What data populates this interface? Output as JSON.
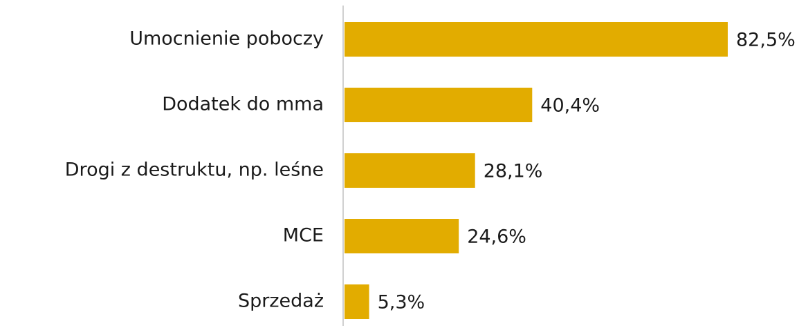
{
  "chart_data": {
    "type": "bar",
    "orientation": "horizontal",
    "categories": [
      "Umocnienie poboczy",
      "Dodatek do mma",
      "Drogi z destruktu, np. leśne",
      "MCE",
      "Sprzedaż"
    ],
    "values": [
      82.5,
      40.4,
      28.1,
      24.6,
      5.3
    ],
    "value_labels": [
      "82,5%",
      "40,4%",
      "28,1%",
      "24,6%",
      "5,3%"
    ],
    "color": "#e2ac00"
  }
}
